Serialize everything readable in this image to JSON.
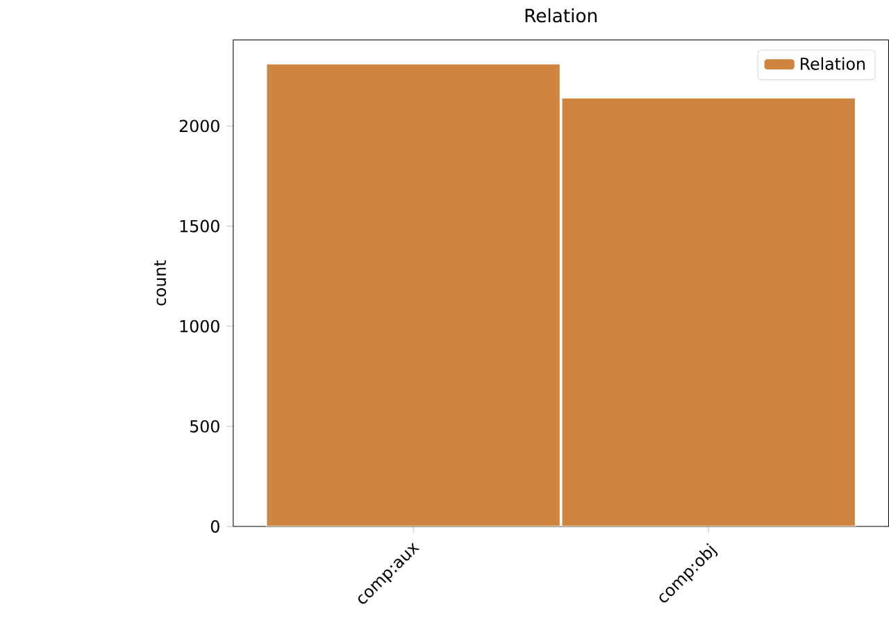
{
  "chart_data": {
    "type": "bar",
    "title": "Relation",
    "ylabel": "count",
    "categories": [
      "comp:aux",
      "comp:obj"
    ],
    "series": [
      {
        "name": "Relation",
        "color": "#cd853f",
        "values": [
          2310,
          2140
        ]
      }
    ],
    "ylim": [
      0,
      2430
    ],
    "yticks": [
      0,
      500,
      1000,
      1500,
      2000
    ],
    "legend": "top right"
  }
}
